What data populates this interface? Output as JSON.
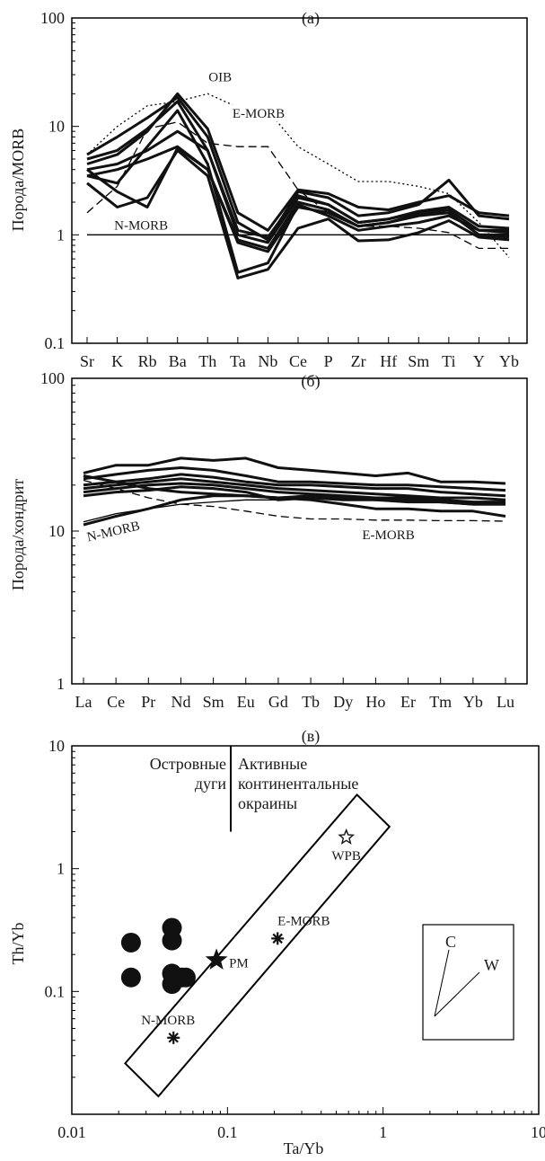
{
  "chart_data": [
    {
      "panel": "(a)",
      "type": "line",
      "yscale": "log",
      "ylabel": "Порода/MORB",
      "ylim": [
        0.1,
        100
      ],
      "yticks": [
        "0.1",
        "1",
        "10",
        "100"
      ],
      "categories": [
        "Sr",
        "K",
        "Rb",
        "Ba",
        "Th",
        "Ta",
        "Nb",
        "Ce",
        "P",
        "Zr",
        "Hf",
        "Sm",
        "Ti",
        "Y",
        "Yb"
      ],
      "samples": [
        [
          5.5,
          8.0,
          12.0,
          18.5,
          8.0,
          1.3,
          0.9,
          2.5,
          2.2,
          1.5,
          1.6,
          1.9,
          3.2,
          1.5,
          1.4
        ],
        [
          4.5,
          5.5,
          9.0,
          20.0,
          9.5,
          1.6,
          1.1,
          2.6,
          2.4,
          1.8,
          1.7,
          2.0,
          2.3,
          1.6,
          1.5
        ],
        [
          3.5,
          3.0,
          6.5,
          14.0,
          4.5,
          0.45,
          0.55,
          1.9,
          1.5,
          1.1,
          1.2,
          1.3,
          1.5,
          1.1,
          1.05
        ],
        [
          3.0,
          1.8,
          2.2,
          6.0,
          3.5,
          0.4,
          0.48,
          1.15,
          1.4,
          0.88,
          0.9,
          1.05,
          1.35,
          0.95,
          0.9
        ],
        [
          4.0,
          2.5,
          1.8,
          6.3,
          4.0,
          0.9,
          0.75,
          2.0,
          1.7,
          1.2,
          1.3,
          1.55,
          1.6,
          1.0,
          1.0
        ],
        [
          4.0,
          4.5,
          6.0,
          9.0,
          6.0,
          1.0,
          0.85,
          2.2,
          1.9,
          1.3,
          1.4,
          1.65,
          1.8,
          1.2,
          1.15
        ],
        [
          3.5,
          4.0,
          5.0,
          6.5,
          4.0,
          0.85,
          0.7,
          1.8,
          1.6,
          1.2,
          1.3,
          1.5,
          1.6,
          1.0,
          0.95
        ],
        [
          5.0,
          6.0,
          9.5,
          17.0,
          6.0,
          1.1,
          0.95,
          2.3,
          1.9,
          1.3,
          1.4,
          1.6,
          1.7,
          1.1,
          1.1
        ]
      ],
      "references": [
        {
          "name": "OIB",
          "style": "dotted",
          "values": [
            5.5,
            10.0,
            15.5,
            17.0,
            20.0,
            15.0,
            14.0,
            6.5,
            4.5,
            3.1,
            3.1,
            2.8,
            2.4,
            1.3,
            0.62
          ]
        },
        {
          "name": "E-MORB",
          "style": "dashed",
          "values": [
            1.6,
            2.8,
            9.5,
            11.0,
            7.0,
            6.5,
            6.5,
            2.6,
            1.6,
            1.2,
            1.2,
            1.15,
            1.05,
            0.75,
            0.75
          ]
        },
        {
          "name": "N-MORB",
          "style": "solid",
          "values": [
            1,
            1,
            1,
            1,
            1,
            1,
            1,
            1,
            1,
            1,
            1,
            1,
            1,
            1,
            1
          ]
        }
      ]
    },
    {
      "panel": "(б)",
      "type": "line",
      "yscale": "log",
      "ylabel": "Порода/хондрит",
      "ylim": [
        1,
        100
      ],
      "yticks": [
        "1",
        "10",
        "100"
      ],
      "categories": [
        "La",
        "Ce",
        "Pr",
        "Nd",
        "Sm",
        "Eu",
        "Gd",
        "Tb",
        "Dy",
        "Ho",
        "Er",
        "Tm",
        "Yb",
        "Lu"
      ],
      "samples": [
        [
          24,
          27,
          27,
          30,
          29,
          30,
          26,
          25,
          24,
          23,
          24,
          21,
          21,
          20.5
        ],
        [
          22,
          23.5,
          25,
          26,
          25,
          23,
          21,
          21,
          20.5,
          20,
          20,
          19.5,
          19,
          18.5
        ],
        [
          20,
          21,
          22,
          23.5,
          22.5,
          21,
          20,
          20,
          19.5,
          19,
          19,
          18,
          17.5,
          17
        ],
        [
          19,
          20,
          21,
          22,
          21,
          20,
          19,
          18.5,
          18,
          17.5,
          17,
          16.5,
          16.5,
          16
        ],
        [
          18,
          19,
          20,
          20.5,
          20,
          19,
          18,
          17.5,
          17,
          16.5,
          16.5,
          16,
          15.5,
          15.5
        ],
        [
          17,
          18,
          18.5,
          19.5,
          19,
          18,
          16,
          16.5,
          16,
          16,
          15.5,
          15.5,
          15,
          15
        ],
        [
          23,
          21,
          19,
          18,
          17.5,
          17,
          16.5,
          17,
          16.5,
          16,
          16,
          15.5,
          15,
          15
        ],
        [
          11,
          12.5,
          14,
          16,
          17,
          17,
          16.5,
          16,
          15,
          14,
          14,
          13.5,
          13.5,
          12.5
        ]
      ],
      "references": [
        {
          "name": "N-MORB",
          "style": "solid",
          "values": [
            11.5,
            13,
            14,
            15,
            15.5,
            16,
            16,
            16.5,
            16.5,
            16.5,
            16.5,
            16,
            15.5,
            15
          ]
        },
        {
          "name": "E-MORB",
          "style": "dashed",
          "values": [
            21.5,
            19,
            16.5,
            15,
            14.5,
            13.5,
            12.5,
            12,
            12,
            11.8,
            11.8,
            11.7,
            11.7,
            11.6
          ]
        }
      ]
    },
    {
      "panel": "(в)",
      "type": "scatter",
      "xscale": "log",
      "yscale": "log",
      "xlabel": "Ta/Yb",
      "ylabel": "Th/Yb",
      "xlim": [
        0.01,
        10
      ],
      "ylim": [
        0.01,
        10
      ],
      "xticks": [
        "0.01",
        "0.1",
        "1",
        "10"
      ],
      "yticks": [
        "0.1",
        "1",
        "10"
      ],
      "points": [
        {
          "x": 0.024,
          "y": 0.25
        },
        {
          "x": 0.024,
          "y": 0.13
        },
        {
          "x": 0.044,
          "y": 0.33
        },
        {
          "x": 0.044,
          "y": 0.26
        },
        {
          "x": 0.044,
          "y": 0.14
        },
        {
          "x": 0.044,
          "y": 0.115
        },
        {
          "x": 0.051,
          "y": 0.13
        },
        {
          "x": 0.054,
          "y": 0.13
        }
      ],
      "references": [
        {
          "name": "PM",
          "marker": "star",
          "x": 0.085,
          "y": 0.18
        },
        {
          "name": "E-MORB",
          "marker": "asterisk",
          "x": 0.21,
          "y": 0.27
        },
        {
          "name": "N-MORB",
          "marker": "asterisk",
          "x": 0.045,
          "y": 0.042
        },
        {
          "name": "WPB",
          "marker": "open-star",
          "x": 0.58,
          "y": 1.8
        }
      ],
      "mantle_array": [
        [
          0.022,
          0.026
        ],
        [
          0.036,
          0.014
        ],
        [
          1.1,
          2.2
        ],
        [
          0.68,
          4.0
        ]
      ],
      "divider": {
        "x": 0.105,
        "y_from": 2.0,
        "y_to": 10
      },
      "field_labels": {
        "island_arcs": [
          "Островные",
          "дуги"
        ],
        "active_margins": [
          "Активные",
          "континентальные",
          "окраины"
        ]
      },
      "vector_legend": [
        "C",
        "W"
      ]
    }
  ]
}
